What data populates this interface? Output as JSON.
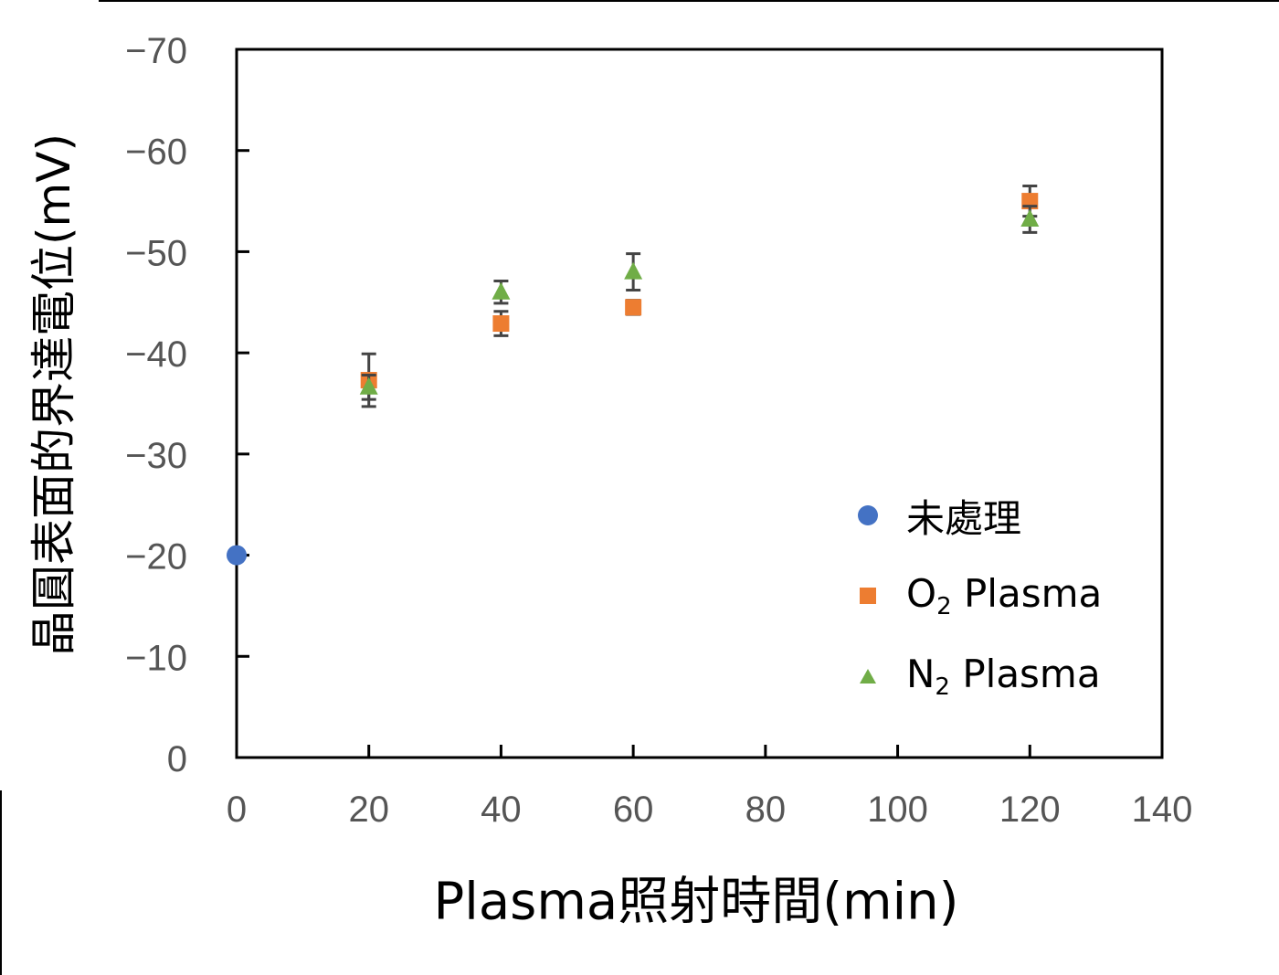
{
  "chart_data": {
    "type": "scatter",
    "title": "",
    "xlabel": "Plasma照射時間(min)",
    "ylabel": "晶圓表面的界達電位(mV)",
    "xlim": [
      0,
      140
    ],
    "ylim": [
      0,
      -70
    ],
    "y_axis_inverted": true,
    "x_ticks": [
      0,
      20,
      40,
      60,
      80,
      100,
      120,
      140
    ],
    "y_ticks": [
      0,
      -10,
      -20,
      -30,
      -40,
      -50,
      -60,
      -70
    ],
    "x_tick_labels": [
      "0",
      "20",
      "40",
      "60",
      "80",
      "100",
      "120",
      "140"
    ],
    "y_tick_labels": [
      "0",
      "−10",
      "−20",
      "−30",
      "−40",
      "−50",
      "−60",
      "−70"
    ],
    "grid": false,
    "legend_position": "lower right (inside plot)",
    "series": [
      {
        "name": "未處理",
        "marker": "circle",
        "color": "#4472C4",
        "points": [
          {
            "x": 0,
            "y": -20.0,
            "err": 0
          }
        ]
      },
      {
        "name": "O2 Plasma",
        "marker": "square",
        "color": "#ED7D31",
        "points": [
          {
            "x": 20,
            "y": -37.3,
            "err": 2.6
          },
          {
            "x": 40,
            "y": -42.9,
            "err": 1.2
          },
          {
            "x": 60,
            "y": -44.5,
            "err": 0.7
          },
          {
            "x": 120,
            "y": -55.0,
            "err": 1.5
          }
        ]
      },
      {
        "name": "N2 Plasma",
        "marker": "triangle",
        "color": "#70AD47",
        "points": [
          {
            "x": 20,
            "y": -36.6,
            "err": 1.2
          },
          {
            "x": 40,
            "y": -46.0,
            "err": 1.1
          },
          {
            "x": 60,
            "y": -48.0,
            "err": 1.8
          },
          {
            "x": 120,
            "y": -53.2,
            "err": 1.3
          }
        ]
      }
    ]
  },
  "labels": {
    "xlabel": "Plasma照射時間(min)",
    "ylabel": "晶圓表面的界達電位(mV)"
  },
  "legend": {
    "items": [
      {
        "label": "未處理",
        "sub": "",
        "rest": ""
      },
      {
        "label": "O",
        "sub": "2",
        "rest": " Plasma"
      },
      {
        "label": "N",
        "sub": "2",
        "rest": " Plasma"
      }
    ]
  }
}
